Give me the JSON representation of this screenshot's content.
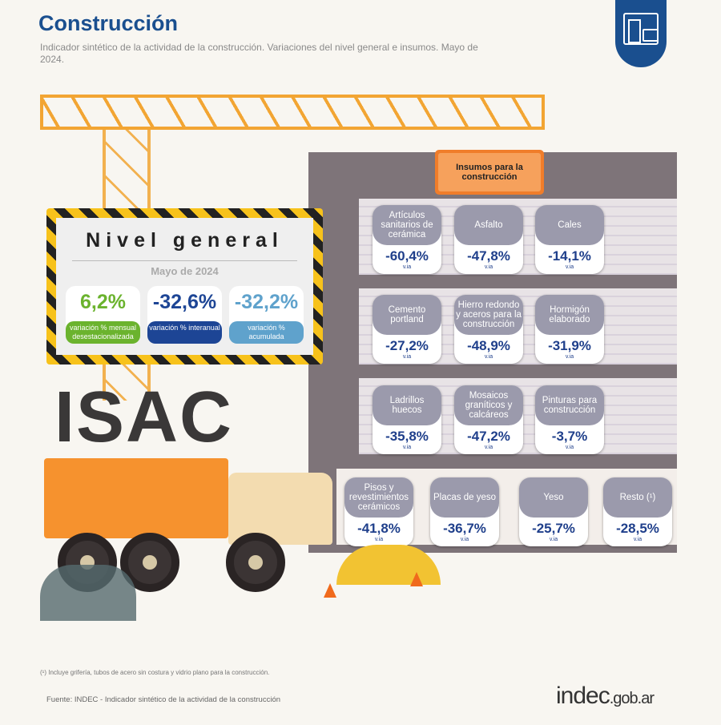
{
  "header": {
    "title": "Construcción",
    "subtitle": "Indicador sintético de la actividad de la construcción. Variaciones del nivel general e insumos. Mayo de 2024."
  },
  "nivel_general": {
    "title": "Nivel general",
    "period": "Mayo de 2024",
    "items": [
      {
        "value": "6,2%",
        "label": "variación % mensual desestacionalizada",
        "color": "#6bb32e"
      },
      {
        "value": "-32,6%",
        "label": "variación % interanual",
        "color": "#1d4595"
      },
      {
        "value": "-32,2%",
        "label": "variación % acumulada",
        "color": "#5fa2cc"
      }
    ]
  },
  "isac_label": "ISAC",
  "insumos": {
    "title": "Insumos para la construcción",
    "items": [
      {
        "name": "Artículos sanitarios de cerámica",
        "value": "-60,4%",
        "unit": "v.ia"
      },
      {
        "name": "Asfalto",
        "value": "-47,8%",
        "unit": "v.ia"
      },
      {
        "name": "Cales",
        "value": "-14,1%",
        "unit": "v.ia"
      },
      {
        "name": "Cemento portland",
        "value": "-27,2%",
        "unit": "v.ia"
      },
      {
        "name": "Hierro redondo y aceros para la construcción",
        "value": "-48,9%",
        "unit": "v.ia"
      },
      {
        "name": "Hormigón elaborado",
        "value": "-31,9%",
        "unit": "v.ia"
      },
      {
        "name": "Ladrillos huecos",
        "value": "-35,8%",
        "unit": "v.ia"
      },
      {
        "name": "Mosaicos graníticos y calcáreos",
        "value": "-47,2%",
        "unit": "v.ia"
      },
      {
        "name": "Pinturas para construcción",
        "value": "-3,7%",
        "unit": "v.ia"
      },
      {
        "name": "Pisos y revestimientos cerámicos",
        "value": "-41,8%",
        "unit": "v.ia"
      },
      {
        "name": "Placas de yeso",
        "value": "-36,7%",
        "unit": "v.ia"
      },
      {
        "name": "Yeso",
        "value": "-25,7%",
        "unit": "v.ia"
      },
      {
        "name": "Resto (¹)",
        "value": "-28,5%",
        "unit": "v.ia"
      }
    ]
  },
  "footer": {
    "note": "(¹) Incluye grifería, tubos de acero sin costura y vidrio plano para la construcción.",
    "source": "Fuente: INDEC - Indicador sintético de la actividad de la construcción",
    "logo_main": "indec",
    "logo_suffix": ".gob.ar"
  },
  "colors": {
    "brand": "#1a4f8f",
    "crane": "#f2a533",
    "card_header": "#9b9aac",
    "value": "#1f3f8b"
  }
}
